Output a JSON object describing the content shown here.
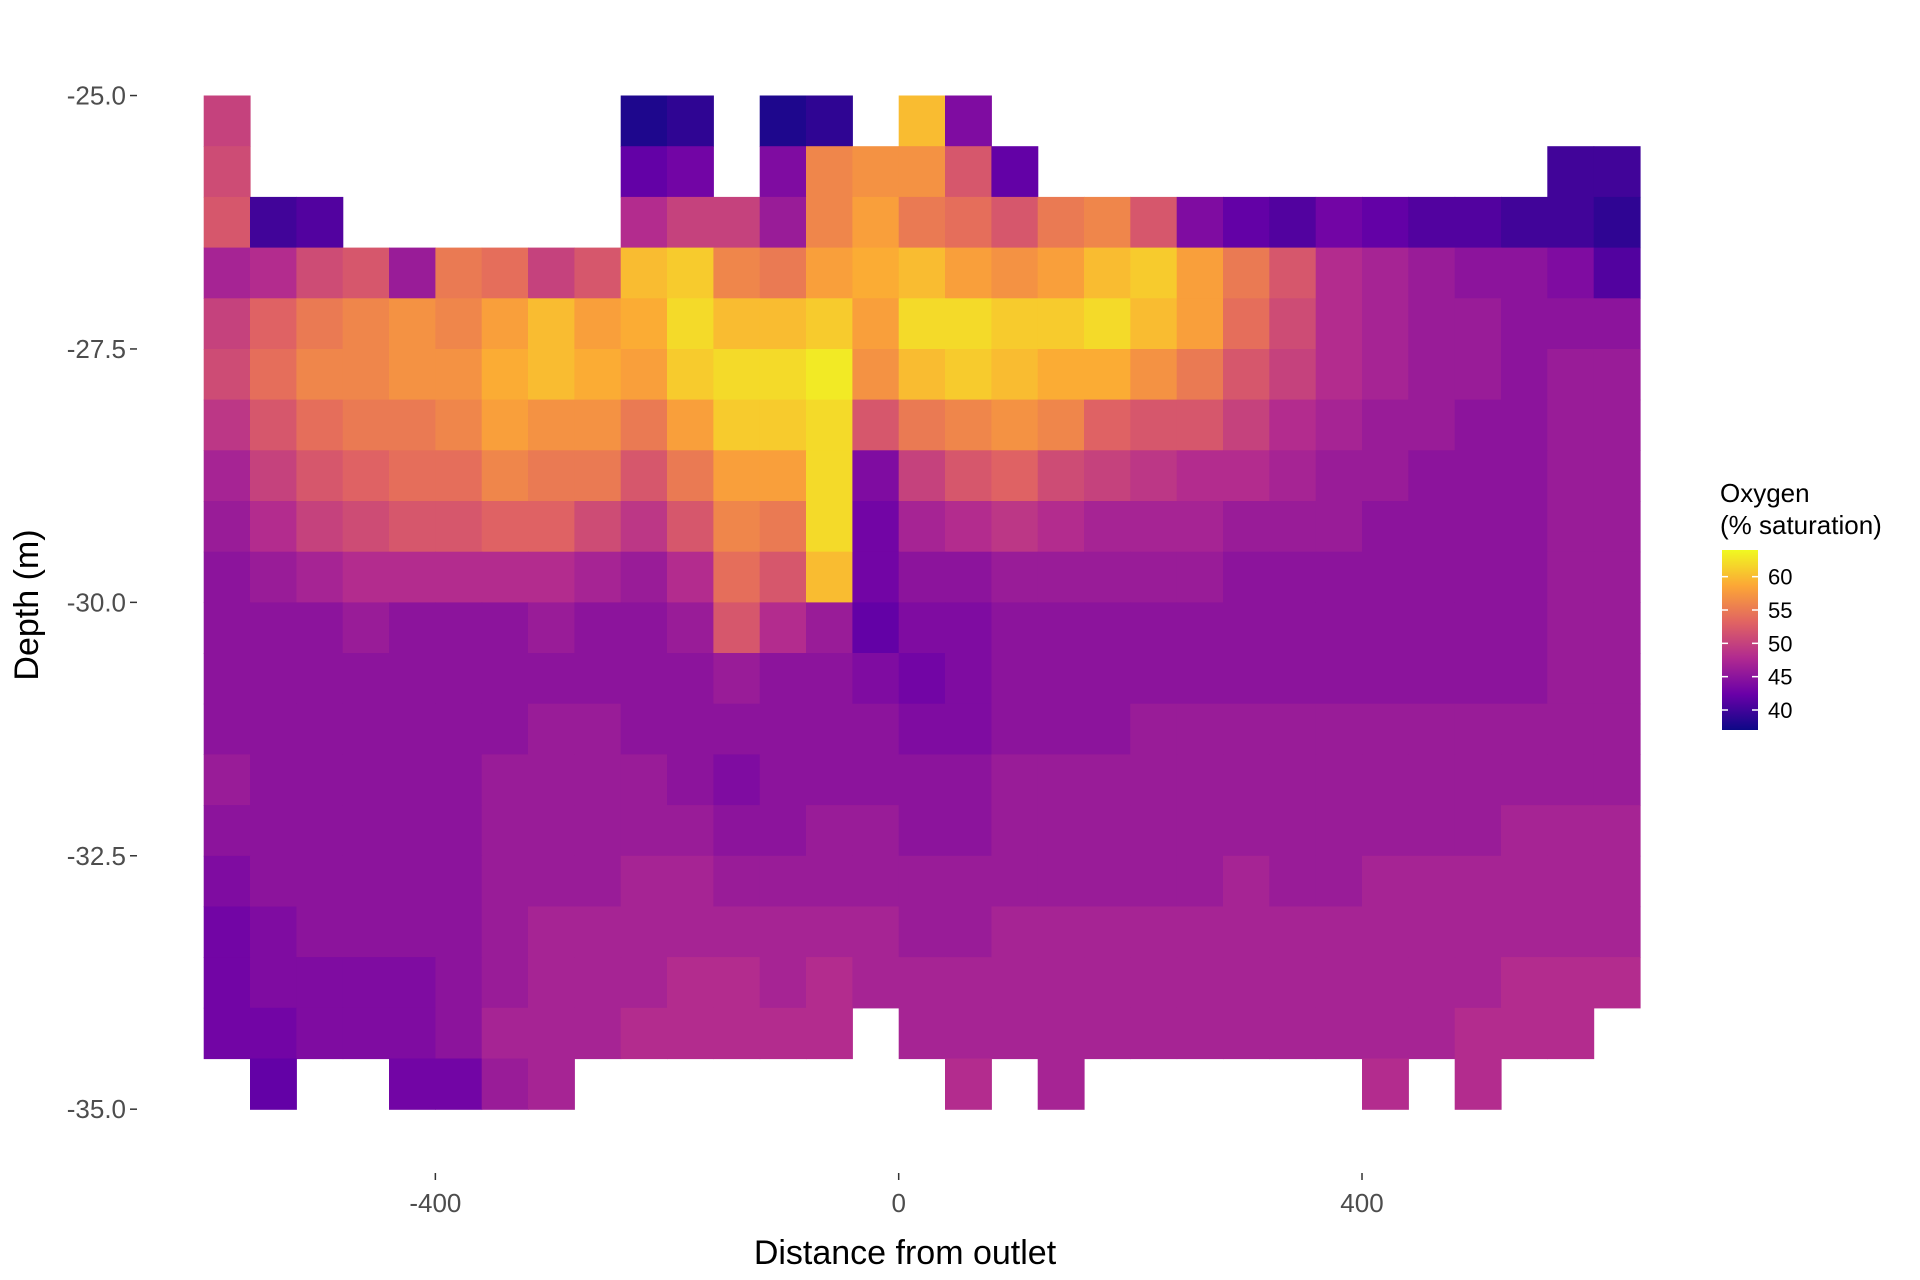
{
  "chart_data": {
    "type": "heatmap",
    "title": "",
    "xlabel": "Distance from outlet",
    "ylabel": "Depth (m)",
    "xlim": [
      -655,
      640
    ],
    "ylim": [
      -35.6,
      -24.6
    ],
    "x_ticks": [
      {
        "value": -400,
        "label": "-400"
      },
      {
        "value": 0,
        "label": "0"
      },
      {
        "value": 400,
        "label": "400"
      }
    ],
    "y_ticks": [
      {
        "value": -25.0,
        "label": "-25.0"
      },
      {
        "value": -27.5,
        "label": "-27.5"
      },
      {
        "value": -30.0,
        "label": "-30.0"
      },
      {
        "value": -32.5,
        "label": "-32.5"
      },
      {
        "value": -35.0,
        "label": "-35.0"
      }
    ],
    "grid": false,
    "colorbar": {
      "title_line1": "Oxygen",
      "title_line2": "(% saturation)",
      "min": 37,
      "max": 64,
      "ticks": [
        {
          "value": 40,
          "label": "40"
        },
        {
          "value": 45,
          "label": "45"
        },
        {
          "value": 50,
          "label": "50"
        },
        {
          "value": 55,
          "label": "55"
        },
        {
          "value": 60,
          "label": "60"
        }
      ],
      "palette": [
        "#0d0887",
        "#6a00a8",
        "#b12a90",
        "#e16462",
        "#fca636",
        "#f0f921"
      ],
      "placement": "right"
    },
    "profiles_x": [
      -580,
      -540,
      -500,
      -460,
      -420,
      -380,
      -340,
      -300,
      -260,
      -220,
      -180,
      -140,
      -100,
      -60,
      -20,
      20,
      60,
      100,
      140,
      180,
      220,
      260,
      300,
      340,
      380,
      420,
      460,
      500,
      540,
      580,
      620
    ],
    "depth_levels": [
      -25.25,
      -25.75,
      -26.25,
      -26.75,
      -27.25,
      -27.75,
      -28.25,
      -28.75,
      -29.25,
      -29.75,
      -30.25,
      -30.75,
      -31.25,
      -31.75,
      -32.25,
      -32.75,
      -33.25,
      -33.75,
      -34.25,
      -34.75
    ],
    "oxygen_grid": [
      [
        50,
        null,
        null,
        null,
        null,
        null,
        null,
        null,
        null,
        38,
        39,
        null,
        38,
        39,
        null,
        60,
        44,
        null,
        null,
        null,
        null,
        null,
        null,
        null,
        null,
        null,
        null,
        null,
        null,
        null,
        null
      ],
      [
        51,
        null,
        null,
        null,
        null,
        null,
        null,
        null,
        null,
        42,
        43,
        null,
        44,
        56,
        57,
        57,
        52,
        42,
        null,
        null,
        null,
        null,
        null,
        null,
        null,
        null,
        null,
        null,
        null,
        40,
        40
      ],
      [
        52,
        40,
        41,
        null,
        null,
        null,
        null,
        null,
        null,
        48,
        50,
        50,
        46,
        56,
        58,
        55,
        54,
        52,
        55,
        56,
        52,
        44,
        42,
        41,
        43,
        42,
        41,
        41,
        40,
        40,
        39
      ],
      [
        47,
        48,
        51,
        52,
        46,
        55,
        54,
        50,
        52,
        60,
        61,
        56,
        55,
        58,
        59,
        60,
        58,
        57,
        58,
        60,
        61,
        58,
        55,
        52,
        48,
        47,
        46,
        45,
        45,
        44,
        41
      ],
      [
        50,
        53,
        55,
        56,
        57,
        56,
        58,
        60,
        58,
        59,
        62,
        60,
        60,
        61,
        58,
        62,
        62,
        61,
        61,
        62,
        60,
        58,
        54,
        51,
        48,
        47,
        46,
        46,
        45,
        45,
        45
      ],
      [
        51,
        54,
        56,
        56,
        57,
        57,
        59,
        60,
        59,
        58,
        61,
        62,
        62,
        63,
        57,
        60,
        61,
        60,
        59,
        59,
        57,
        55,
        52,
        50,
        48,
        47,
        46,
        46,
        45,
        46,
        46
      ],
      [
        49,
        52,
        54,
        55,
        55,
        56,
        58,
        57,
        57,
        55,
        58,
        61,
        61,
        62,
        52,
        55,
        56,
        57,
        56,
        53,
        52,
        52,
        50,
        48,
        47,
        46,
        46,
        45,
        45,
        46,
        46
      ],
      [
        47,
        50,
        52,
        53,
        54,
        54,
        56,
        55,
        55,
        52,
        55,
        58,
        58,
        62,
        44,
        50,
        52,
        53,
        51,
        50,
        49,
        48,
        48,
        47,
        46,
        46,
        45,
        45,
        45,
        46,
        46
      ],
      [
        46,
        48,
        50,
        51,
        52,
        52,
        53,
        53,
        51,
        49,
        52,
        56,
        55,
        62,
        43,
        47,
        48,
        49,
        48,
        47,
        47,
        47,
        46,
        46,
        46,
        45,
        45,
        45,
        45,
        46,
        46
      ],
      [
        45,
        46,
        47,
        48,
        48,
        48,
        48,
        48,
        47,
        46,
        48,
        54,
        52,
        60,
        43,
        45,
        45,
        46,
        46,
        46,
        46,
        46,
        45,
        45,
        45,
        45,
        45,
        45,
        45,
        46,
        46
      ],
      [
        45,
        45,
        45,
        46,
        45,
        45,
        45,
        46,
        45,
        45,
        46,
        52,
        48,
        46,
        42,
        44,
        44,
        45,
        45,
        45,
        45,
        45,
        45,
        45,
        45,
        45,
        45,
        45,
        45,
        46,
        46
      ],
      [
        45,
        45,
        45,
        45,
        45,
        45,
        45,
        45,
        45,
        45,
        45,
        46,
        45,
        45,
        44,
        43,
        44,
        45,
        45,
        45,
        45,
        45,
        45,
        45,
        45,
        45,
        45,
        45,
        45,
        46,
        46
      ],
      [
        45,
        45,
        45,
        45,
        45,
        45,
        45,
        46,
        46,
        45,
        45,
        45,
        45,
        45,
        45,
        44,
        44,
        45,
        45,
        45,
        46,
        46,
        46,
        46,
        46,
        46,
        46,
        46,
        46,
        46,
        46
      ],
      [
        46,
        45,
        45,
        45,
        45,
        45,
        46,
        46,
        46,
        46,
        45,
        44,
        45,
        45,
        45,
        45,
        45,
        46,
        46,
        46,
        46,
        46,
        46,
        46,
        46,
        46,
        46,
        46,
        46,
        46,
        46
      ],
      [
        45,
        45,
        45,
        45,
        45,
        45,
        46,
        46,
        46,
        46,
        46,
        45,
        45,
        46,
        46,
        45,
        45,
        46,
        46,
        46,
        46,
        46,
        46,
        46,
        46,
        46,
        46,
        46,
        47,
        47,
        47
      ],
      [
        44,
        45,
        45,
        45,
        45,
        45,
        46,
        46,
        46,
        47,
        47,
        46,
        46,
        46,
        46,
        46,
        46,
        46,
        46,
        46,
        46,
        46,
        47,
        46,
        46,
        47,
        47,
        47,
        47,
        47,
        47
      ],
      [
        43,
        44,
        45,
        45,
        45,
        45,
        46,
        47,
        47,
        47,
        47,
        47,
        47,
        47,
        47,
        46,
        46,
        47,
        47,
        47,
        47,
        47,
        47,
        47,
        47,
        47,
        47,
        47,
        47,
        47,
        47
      ],
      [
        43,
        44,
        44,
        44,
        44,
        45,
        46,
        47,
        47,
        47,
        48,
        48,
        47,
        48,
        47,
        47,
        47,
        47,
        47,
        47,
        47,
        47,
        47,
        47,
        47,
        47,
        47,
        47,
        48,
        48,
        48
      ],
      [
        43,
        43,
        44,
        44,
        44,
        45,
        47,
        47,
        47,
        48,
        48,
        48,
        48,
        48,
        null,
        47,
        47,
        47,
        47,
        47,
        47,
        47,
        47,
        47,
        47,
        47,
        47,
        48,
        48,
        48,
        null
      ],
      [
        null,
        42,
        null,
        null,
        43,
        43,
        46,
        47,
        null,
        null,
        null,
        null,
        null,
        null,
        null,
        null,
        48,
        null,
        47,
        null,
        null,
        null,
        null,
        null,
        null,
        48,
        null,
        48,
        null,
        null,
        null
      ]
    ]
  }
}
